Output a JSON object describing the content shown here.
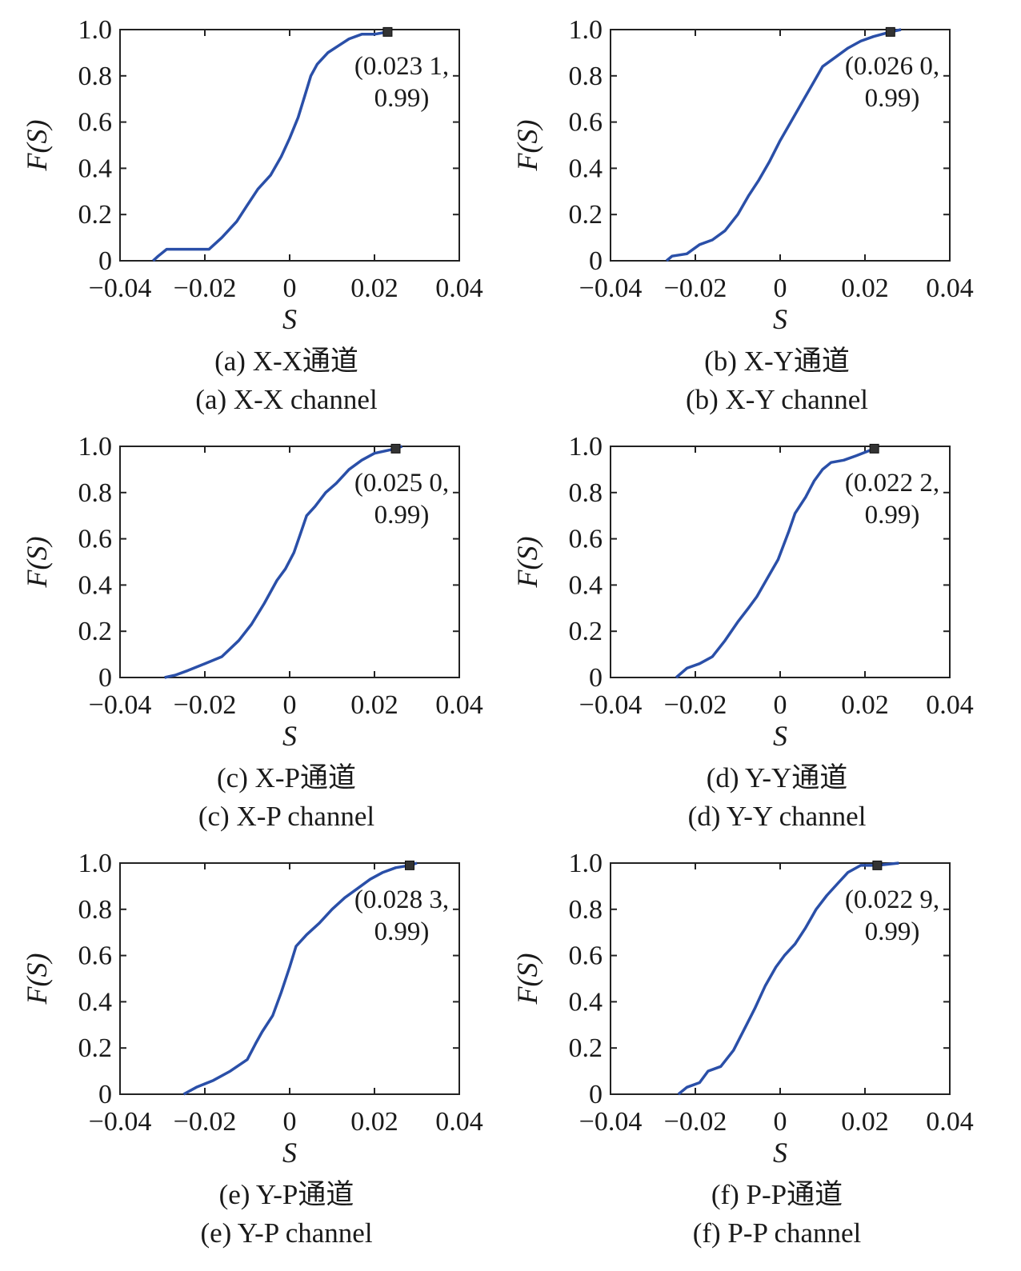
{
  "chart_data": [
    {
      "type": "line",
      "caption_cn": "(a) X-X通道",
      "caption_en": "(a) X-X channel",
      "xlabel": "S",
      "ylabel": "F(S)",
      "xlim": [
        -0.04,
        0.04
      ],
      "ylim": [
        0,
        1.0
      ],
      "xticks": [
        "−0.04",
        "−0.02",
        "0",
        "0.02",
        "0.04"
      ],
      "yticks": [
        "0",
        "0.2",
        "0.4",
        "0.6",
        "0.8",
        "1.0"
      ],
      "annotation_line1": "(0.023 1,",
      "annotation_line2": "0.99)",
      "marker": {
        "x": 0.0231,
        "y": 0.99
      },
      "color": "#2a4fa8",
      "series": [
        {
          "x": [
            -0.0322,
            -0.031,
            -0.029,
            -0.025,
            -0.019,
            -0.016,
            -0.0125,
            -0.01,
            -0.0075,
            -0.0045,
            -0.002,
            0.0,
            0.002,
            0.0035,
            0.005,
            0.0065,
            0.009,
            0.0115,
            0.014,
            0.017,
            0.02,
            0.0231,
            0.024
          ],
          "y": [
            0.0,
            0.02,
            0.05,
            0.05,
            0.05,
            0.1,
            0.17,
            0.24,
            0.31,
            0.37,
            0.45,
            0.53,
            0.62,
            0.71,
            0.8,
            0.85,
            0.9,
            0.93,
            0.96,
            0.98,
            0.98,
            0.99,
            0.99
          ]
        }
      ]
    },
    {
      "type": "line",
      "caption_cn": "(b) X-Y通道",
      "caption_en": "(b) X-Y channel",
      "xlabel": "S",
      "ylabel": "F(S)",
      "xlim": [
        -0.04,
        0.04
      ],
      "ylim": [
        0,
        1.0
      ],
      "xticks": [
        "−0.04",
        "−0.02",
        "0",
        "0.02",
        "0.04"
      ],
      "yticks": [
        "0",
        "0.2",
        "0.4",
        "0.6",
        "0.8",
        "1.0"
      ],
      "annotation_line1": "(0.026 0,",
      "annotation_line2": "0.99)",
      "marker": {
        "x": 0.026,
        "y": 0.99
      },
      "color": "#2a4fa8",
      "series": [
        {
          "x": [
            -0.0268,
            -0.0255,
            -0.022,
            -0.019,
            -0.016,
            -0.013,
            -0.01,
            -0.0075,
            -0.005,
            -0.0025,
            0.0,
            0.0025,
            0.005,
            0.0075,
            0.01,
            0.013,
            0.016,
            0.019,
            0.022,
            0.026,
            0.0285
          ],
          "y": [
            0.0,
            0.02,
            0.03,
            0.07,
            0.09,
            0.13,
            0.2,
            0.28,
            0.35,
            0.43,
            0.52,
            0.6,
            0.68,
            0.76,
            0.84,
            0.88,
            0.92,
            0.95,
            0.97,
            0.99,
            1.0
          ]
        }
      ]
    },
    {
      "type": "line",
      "caption_cn": "(c) X-P通道",
      "caption_en": "(c) X-P channel",
      "xlabel": "S",
      "ylabel": "F(S)",
      "xlim": [
        -0.04,
        0.04
      ],
      "ylim": [
        0,
        1.0
      ],
      "xticks": [
        "−0.04",
        "−0.02",
        "0",
        "0.02",
        "0.04"
      ],
      "yticks": [
        "0",
        "0.2",
        "0.4",
        "0.6",
        "0.8",
        "1.0"
      ],
      "annotation_line1": "(0.025 0,",
      "annotation_line2": "0.99)",
      "marker": {
        "x": 0.025,
        "y": 0.99
      },
      "color": "#2a4fa8",
      "series": [
        {
          "x": [
            -0.0295,
            -0.027,
            -0.024,
            -0.02,
            -0.016,
            -0.012,
            -0.009,
            -0.006,
            -0.003,
            -0.001,
            0.001,
            0.0025,
            0.004,
            0.006,
            0.0085,
            0.011,
            0.014,
            0.017,
            0.02,
            0.025,
            0.0265
          ],
          "y": [
            0.0,
            0.01,
            0.03,
            0.06,
            0.09,
            0.16,
            0.23,
            0.32,
            0.42,
            0.47,
            0.54,
            0.62,
            0.7,
            0.74,
            0.8,
            0.84,
            0.9,
            0.94,
            0.97,
            0.99,
            1.0
          ]
        }
      ]
    },
    {
      "type": "line",
      "caption_cn": "(d) Y-Y通道",
      "caption_en": "(d) Y-Y channel",
      "xlabel": "S",
      "ylabel": "F(S)",
      "xlim": [
        -0.04,
        0.04
      ],
      "ylim": [
        0,
        1.0
      ],
      "xticks": [
        "−0.04",
        "−0.02",
        "0",
        "0.02",
        "0.04"
      ],
      "yticks": [
        "0",
        "0.2",
        "0.4",
        "0.6",
        "0.8",
        "1.0"
      ],
      "annotation_line1": "(0.022 2,",
      "annotation_line2": "0.99)",
      "marker": {
        "x": 0.0222,
        "y": 0.99
      },
      "color": "#2a4fa8",
      "series": [
        {
          "x": [
            -0.0245,
            -0.022,
            -0.019,
            -0.016,
            -0.013,
            -0.01,
            -0.0075,
            -0.0055,
            -0.003,
            -0.0005,
            0.002,
            0.0035,
            0.006,
            0.008,
            0.01,
            0.012,
            0.015,
            0.018,
            0.0222
          ],
          "y": [
            0.0,
            0.04,
            0.06,
            0.09,
            0.16,
            0.24,
            0.3,
            0.35,
            0.43,
            0.51,
            0.63,
            0.71,
            0.78,
            0.85,
            0.9,
            0.93,
            0.94,
            0.96,
            0.99
          ]
        }
      ]
    },
    {
      "type": "line",
      "caption_cn": "(e) Y-P通道",
      "caption_en": "(e) Y-P channel",
      "xlabel": "S",
      "ylabel": "F(S)",
      "xlim": [
        -0.04,
        0.04
      ],
      "ylim": [
        0,
        1.0
      ],
      "xticks": [
        "−0.04",
        "−0.02",
        "0",
        "0.02",
        "0.04"
      ],
      "yticks": [
        "0",
        "0.2",
        "0.4",
        "0.6",
        "0.8",
        "1.0"
      ],
      "annotation_line1": "(0.028 3,",
      "annotation_line2": "0.99)",
      "marker": {
        "x": 0.0283,
        "y": 0.99
      },
      "color": "#2a4fa8",
      "series": [
        {
          "x": [
            -0.025,
            -0.022,
            -0.018,
            -0.014,
            -0.01,
            -0.008,
            -0.0065,
            -0.004,
            -0.002,
            0.0,
            0.0015,
            0.004,
            0.007,
            0.01,
            0.013,
            0.016,
            0.019,
            0.022,
            0.025,
            0.0283,
            0.03
          ],
          "y": [
            0.0,
            0.03,
            0.06,
            0.1,
            0.15,
            0.22,
            0.27,
            0.34,
            0.44,
            0.55,
            0.64,
            0.69,
            0.74,
            0.8,
            0.85,
            0.89,
            0.93,
            0.96,
            0.98,
            0.99,
            1.0
          ]
        }
      ]
    },
    {
      "type": "line",
      "caption_cn": "(f) P-P通道",
      "caption_en": "(f) P-P channel",
      "xlabel": "S",
      "ylabel": "F(S)",
      "xlim": [
        -0.04,
        0.04
      ],
      "ylim": [
        0,
        1.0
      ],
      "xticks": [
        "−0.04",
        "−0.02",
        "0",
        "0.02",
        "0.04"
      ],
      "yticks": [
        "0",
        "0.2",
        "0.4",
        "0.6",
        "0.8",
        "1.0"
      ],
      "annotation_line1": "(0.022 9,",
      "annotation_line2": "0.99)",
      "marker": {
        "x": 0.0229,
        "y": 0.99
      },
      "color": "#2a4fa8",
      "series": [
        {
          "x": [
            -0.024,
            -0.022,
            -0.019,
            -0.017,
            -0.014,
            -0.011,
            -0.0085,
            -0.006,
            -0.0035,
            -0.001,
            0.001,
            0.0035,
            0.006,
            0.0085,
            0.011,
            0.0135,
            0.016,
            0.019,
            0.0229,
            0.028
          ],
          "y": [
            0.0,
            0.03,
            0.05,
            0.1,
            0.12,
            0.19,
            0.28,
            0.37,
            0.47,
            0.55,
            0.6,
            0.65,
            0.72,
            0.8,
            0.86,
            0.91,
            0.96,
            0.99,
            0.99,
            1.0
          ]
        }
      ]
    }
  ]
}
